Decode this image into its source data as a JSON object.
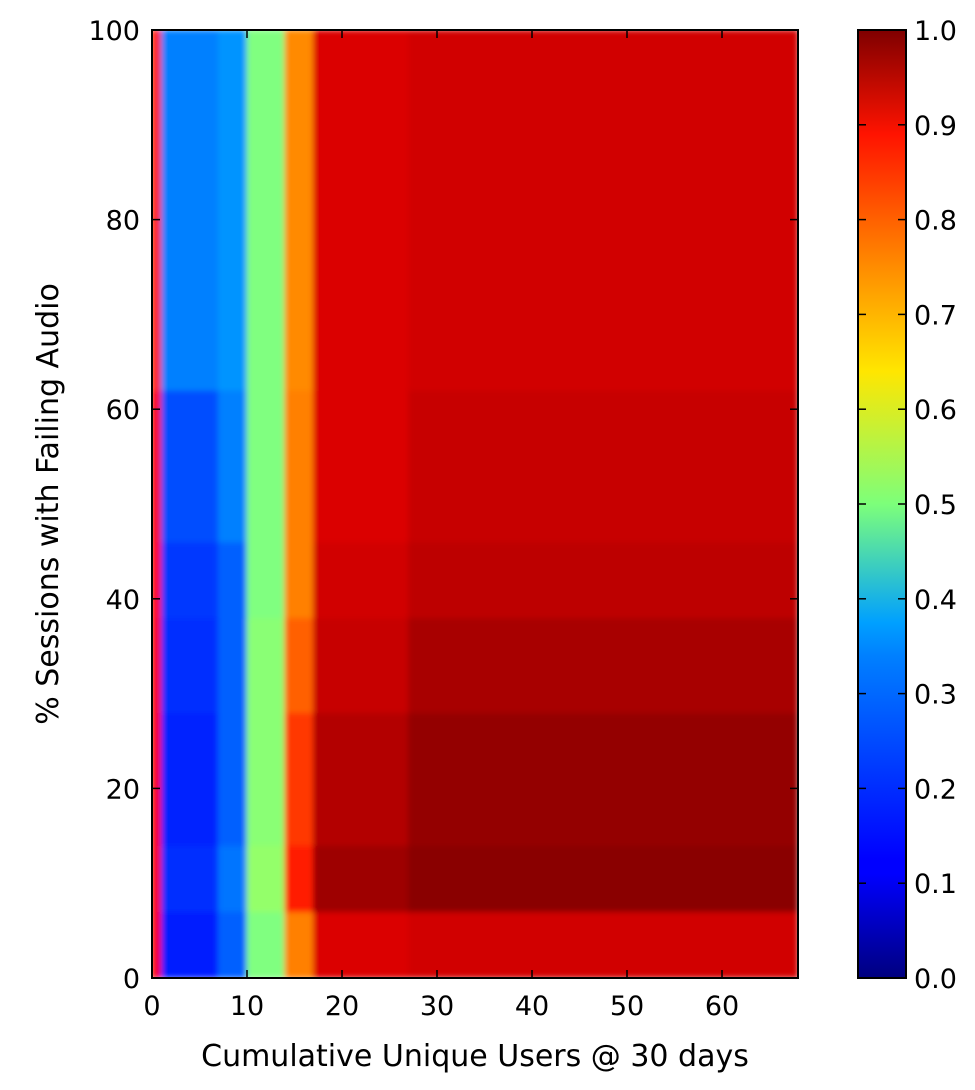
{
  "chart_data": {
    "type": "heatmap",
    "title": "",
    "xlabel": "Cumulative Unique Users @ 30 days",
    "ylabel": "% Sessions with Failing Audio",
    "xlim": [
      0,
      68
    ],
    "ylim": [
      0,
      100
    ],
    "x_ticks": [
      0,
      10,
      20,
      30,
      40,
      50,
      60
    ],
    "y_ticks": [
      0,
      20,
      40,
      60,
      80,
      100
    ],
    "colormap": "jet",
    "colorbar": {
      "range": [
        0.0,
        1.0
      ],
      "ticks": [
        "0.0",
        "0.1",
        "0.2",
        "0.3",
        "0.4",
        "0.5",
        "0.6",
        "0.7",
        "0.8",
        "0.9",
        "1.0"
      ],
      "position": "right"
    },
    "grid": false,
    "x_bin_edges": [
      0,
      1,
      7,
      10,
      14,
      17,
      27,
      68
    ],
    "y_bin_edges": [
      0,
      7,
      14,
      28,
      38,
      46,
      62,
      100
    ],
    "values": [
      [
        0.88,
        0.15,
        0.22,
        0.5,
        0.75,
        0.91,
        0.92
      ],
      [
        0.88,
        0.17,
        0.24,
        0.52,
        0.85,
        0.97,
        0.99
      ],
      [
        0.88,
        0.16,
        0.22,
        0.51,
        0.82,
        0.95,
        0.98
      ],
      [
        0.88,
        0.17,
        0.22,
        0.51,
        0.78,
        0.93,
        0.96
      ],
      [
        0.87,
        0.18,
        0.22,
        0.5,
        0.75,
        0.92,
        0.94
      ],
      [
        0.88,
        0.2,
        0.25,
        0.5,
        0.75,
        0.91,
        0.93
      ],
      [
        0.85,
        0.25,
        0.27,
        0.5,
        0.74,
        0.91,
        0.92
      ]
    ]
  }
}
